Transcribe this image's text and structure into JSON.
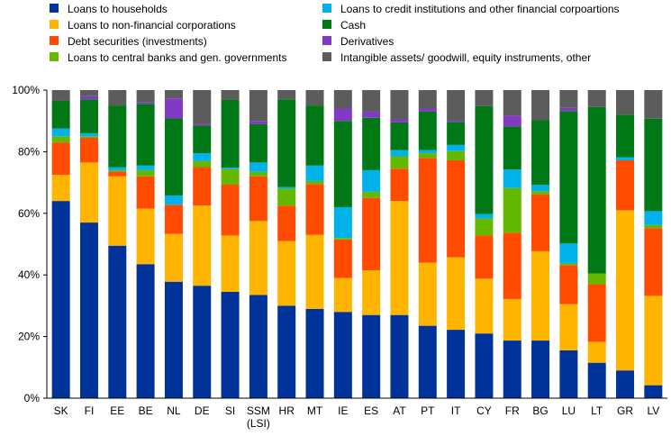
{
  "chart_data": {
    "type": "bar",
    "stacked": true,
    "categories": [
      "SK",
      "FI",
      "EE",
      "BE",
      "NL",
      "DE",
      "SI",
      "SSM\n(LSI)",
      "HR",
      "MT",
      "IE",
      "ES",
      "AT",
      "PT",
      "IT",
      "CY",
      "FR",
      "BG",
      "LU",
      "LT",
      "GR",
      "LV"
    ],
    "ylim": [
      0,
      100
    ],
    "yticks": [
      "0%",
      "20%",
      "40%",
      "60%",
      "80%",
      "100%"
    ],
    "grid": false,
    "legend_position": "top",
    "series": [
      {
        "name": "Loans to households",
        "color": "#003399",
        "values": [
          64,
          57,
          49.5,
          43.5,
          37.8,
          36.5,
          34.5,
          33.5,
          30,
          29,
          28,
          27,
          27,
          23.5,
          22.2,
          21,
          18.7,
          18.7,
          15.5,
          11.5,
          9,
          4.2
        ]
      },
      {
        "name": "Loans to non-financial corporations",
        "color": "#FFB400",
        "values": [
          8.5,
          19.5,
          22.5,
          18,
          15.5,
          26,
          18.3,
          24,
          21,
          24,
          11,
          14.5,
          37,
          20.5,
          23.5,
          17.8,
          13.5,
          29,
          15,
          6.8,
          52,
          29
        ]
      },
      {
        "name": "Debt securities (investments)",
        "color": "#FF4B00",
        "values": [
          10.5,
          8,
          1.5,
          10.5,
          9.5,
          12.5,
          16.5,
          14.5,
          11.5,
          16.5,
          12.5,
          23.5,
          10.5,
          34,
          31.5,
          14,
          21.5,
          18.5,
          12.7,
          18.7,
          16.2,
          22
        ]
      },
      {
        "name": "Loans to central banks and gen. governments",
        "color": "#65B800",
        "values": [
          2,
          0.5,
          0.5,
          2,
          0,
          2,
          5,
          1.5,
          5.5,
          1,
          0.5,
          2,
          4,
          1.5,
          3,
          5.5,
          14.5,
          1,
          0.5,
          3.5,
          0,
          1
        ]
      },
      {
        "name": "Loans to credit institutions and other financial corpoartions",
        "color": "#00B1EA",
        "values": [
          2.5,
          1,
          1,
          1.5,
          3,
          2.5,
          0.5,
          3,
          0.5,
          5,
          10,
          7,
          2,
          1,
          2,
          1.5,
          6,
          2,
          6.5,
          0,
          1,
          4.5
        ]
      },
      {
        "name": "Cash",
        "color": "#007816",
        "values": [
          9,
          11,
          20,
          20,
          25,
          9,
          22,
          12.5,
          28.5,
          19.5,
          28,
          17,
          9,
          12.5,
          7.5,
          35,
          14,
          21,
          43,
          54,
          13.8,
          30
        ]
      },
      {
        "name": "Derivatives",
        "color": "#8139C6",
        "values": [
          0,
          1,
          0,
          0.5,
          6.5,
          0.5,
          0,
          1,
          0,
          0,
          4,
          2,
          1,
          1,
          0.5,
          0,
          3.5,
          0,
          1,
          0,
          0,
          0
        ]
      },
      {
        "name": "Intangible assets/ goodwill, equity instruments, other",
        "color": "#5C5C5C",
        "values": [
          3.5,
          2,
          5,
          4,
          2.7,
          11,
          3.2,
          10,
          3,
          5,
          6,
          7,
          9.5,
          6,
          9.8,
          5.2,
          8.3,
          9.8,
          5.8,
          5.5,
          8,
          9.3
        ]
      }
    ]
  }
}
